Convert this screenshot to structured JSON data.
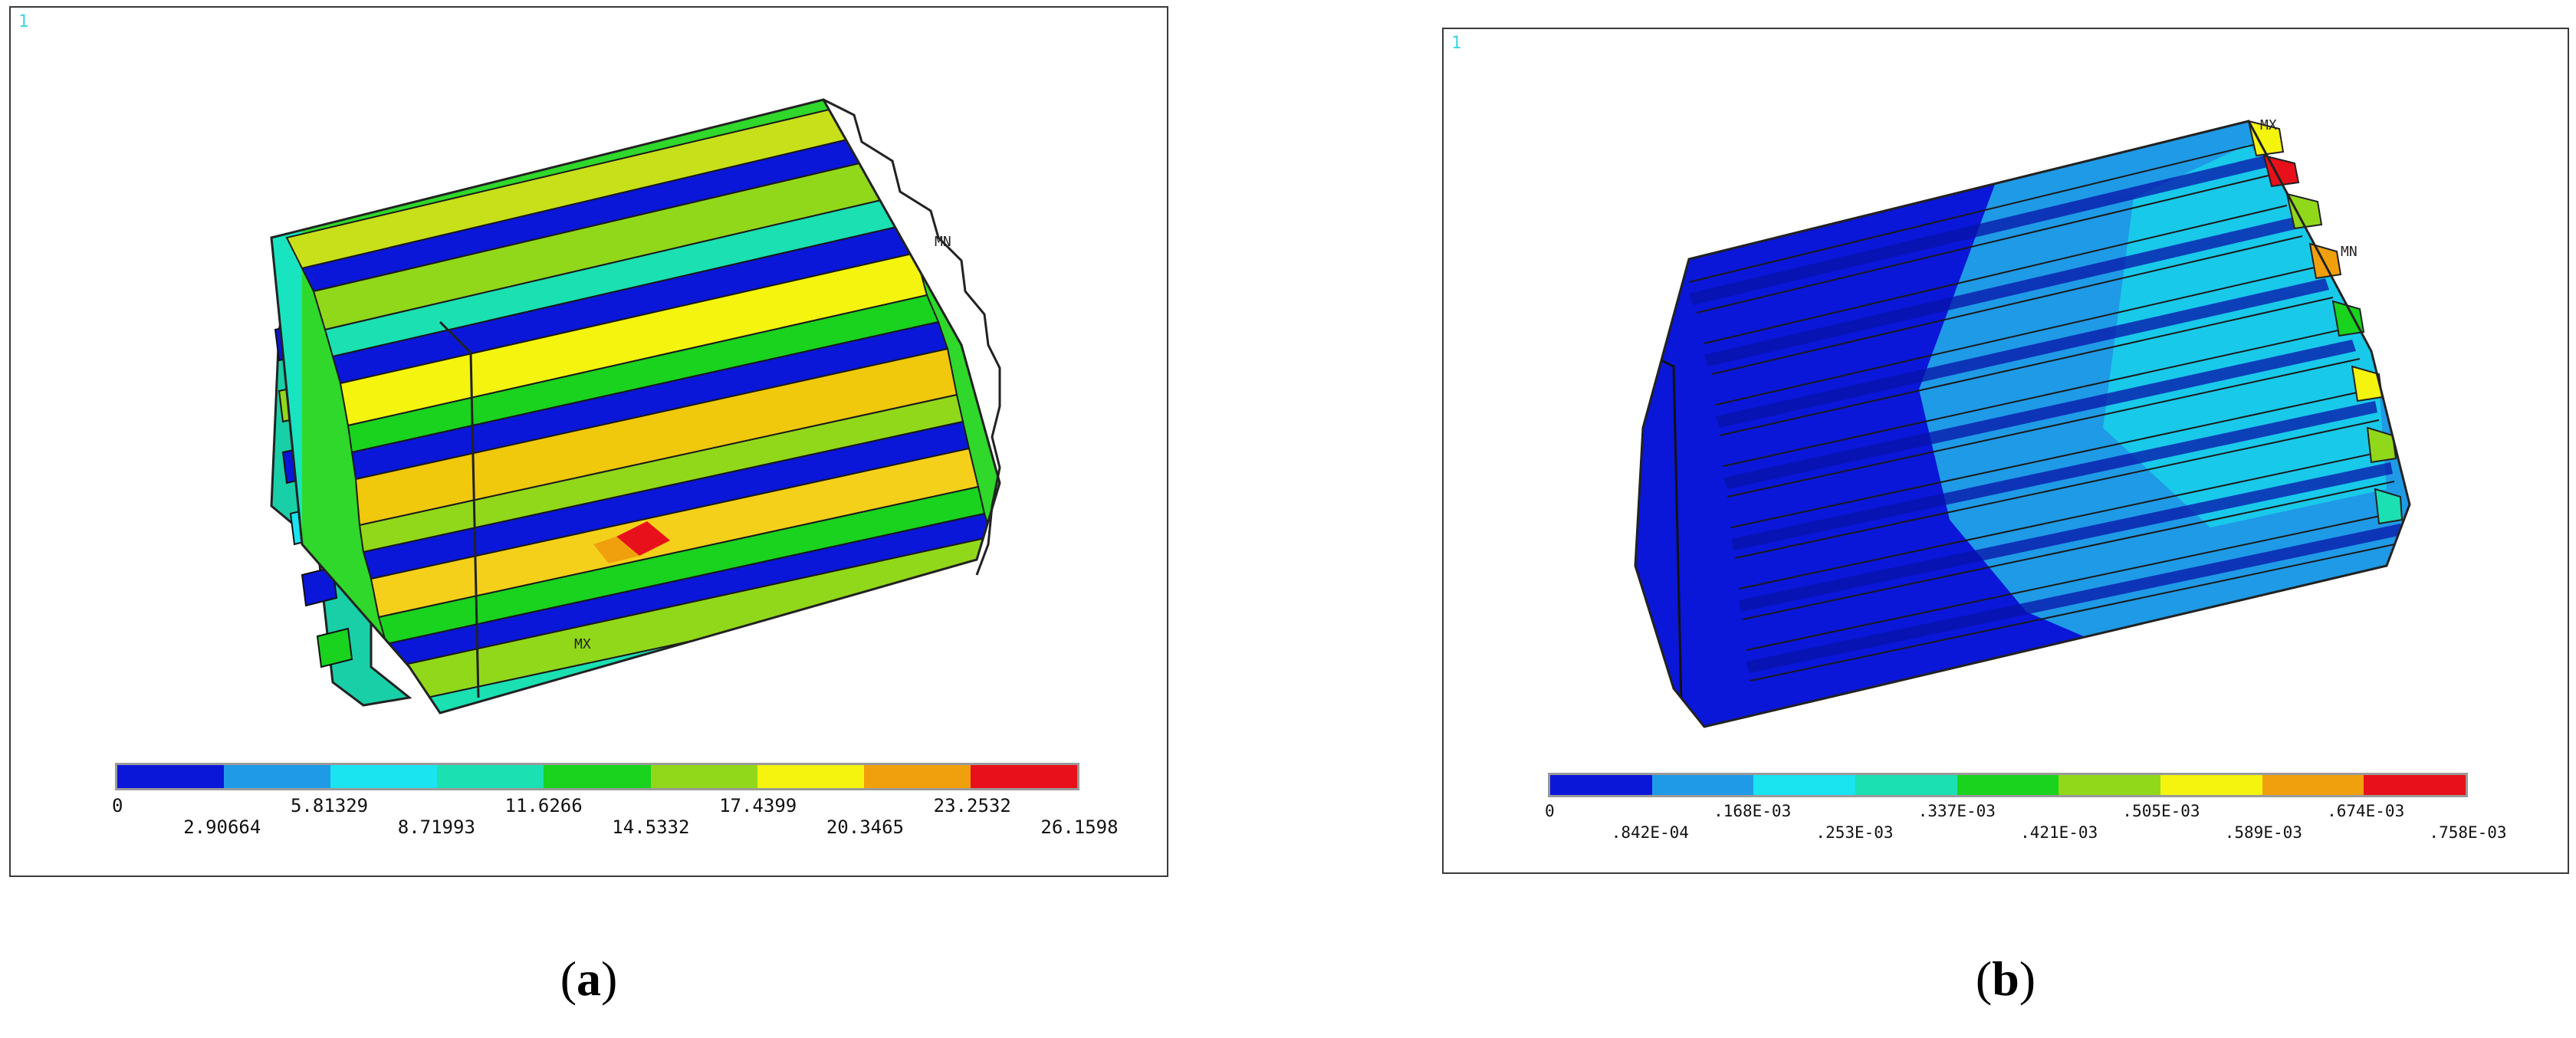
{
  "panels": [
    {
      "id": "a",
      "corner_number": "1",
      "node_labels": {
        "mx": "MX",
        "mn": "MN"
      },
      "legend": {
        "colors": [
          "#0a16d8",
          "#1f9ae6",
          "#19e4f0",
          "#1ae0b2",
          "#19d31f",
          "#92d81a",
          "#f4f40e",
          "#f0a00c",
          "#e8101a"
        ],
        "ticks": [
          "0",
          "2.90664",
          "5.81329",
          "8.71993",
          "11.6266",
          "14.5332",
          "17.4399",
          "20.3465",
          "23.2532",
          "26.1598"
        ]
      },
      "caption": "a"
    },
    {
      "id": "b",
      "corner_number": "1",
      "node_labels": {
        "mx": "MX",
        "mn": "MN"
      },
      "legend": {
        "colors": [
          "#0a16d8",
          "#1f9ae6",
          "#19e4f0",
          "#1ae0b2",
          "#19d31f",
          "#92d81a",
          "#f4f40e",
          "#f0a00c",
          "#e8101a"
        ],
        "ticks": [
          "0",
          ".842E-04",
          ".168E-03",
          ".253E-03",
          ".337E-03",
          ".421E-03",
          ".505E-03",
          ".589E-03",
          ".674E-03",
          ".758E-03"
        ]
      },
      "caption": "b"
    }
  ]
}
